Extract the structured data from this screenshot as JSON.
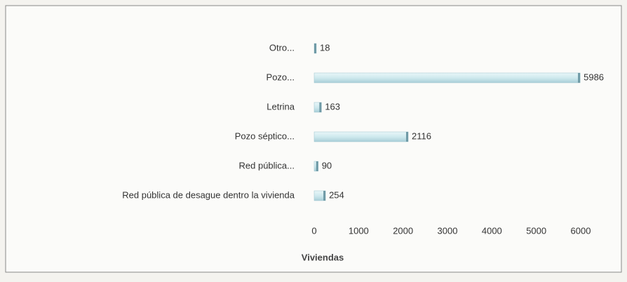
{
  "chart_data": {
    "type": "barh",
    "categories": [
      "Otro...",
      "Pozo...",
      "Letrina",
      "Pozo séptico...",
      "Red pública...",
      "Red pública de desague dentro la vivienda"
    ],
    "values": [
      18,
      5986,
      163,
      2116,
      90,
      254
    ],
    "color": "#cfe9ee",
    "xlim": [
      0,
      6000
    ],
    "xticks": [
      0,
      1000,
      2000,
      3000,
      4000,
      5000,
      6000
    ],
    "xlabel": "Viviendas",
    "grid": false
  }
}
